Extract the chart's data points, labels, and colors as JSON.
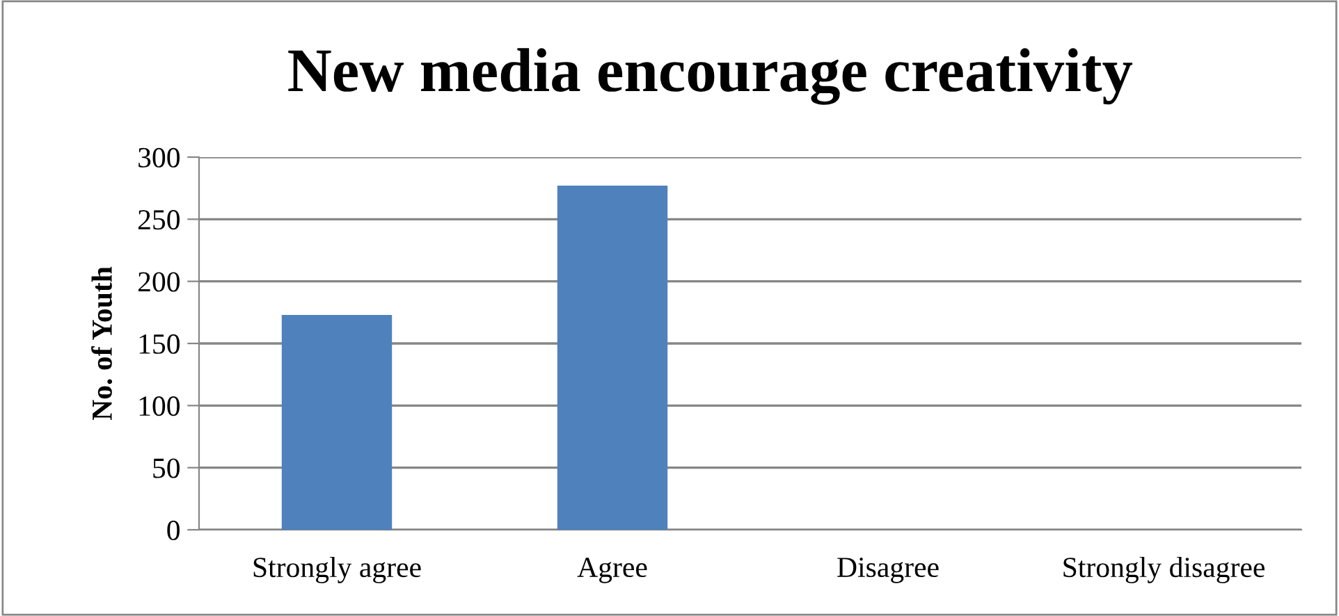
{
  "chart_data": {
    "type": "bar",
    "title": "New media encourage creativity",
    "ylabel": "No. of Youth",
    "categories": [
      "Strongly agree",
      "Agree",
      "Disagree",
      "Strongly disagree"
    ],
    "values": [
      173,
      277,
      0,
      0
    ],
    "color": "#4f81bd",
    "ylim": [
      0,
      300
    ],
    "yticks": [
      0,
      50,
      100,
      150,
      200,
      250,
      300
    ],
    "grid": "y",
    "legend": false
  }
}
